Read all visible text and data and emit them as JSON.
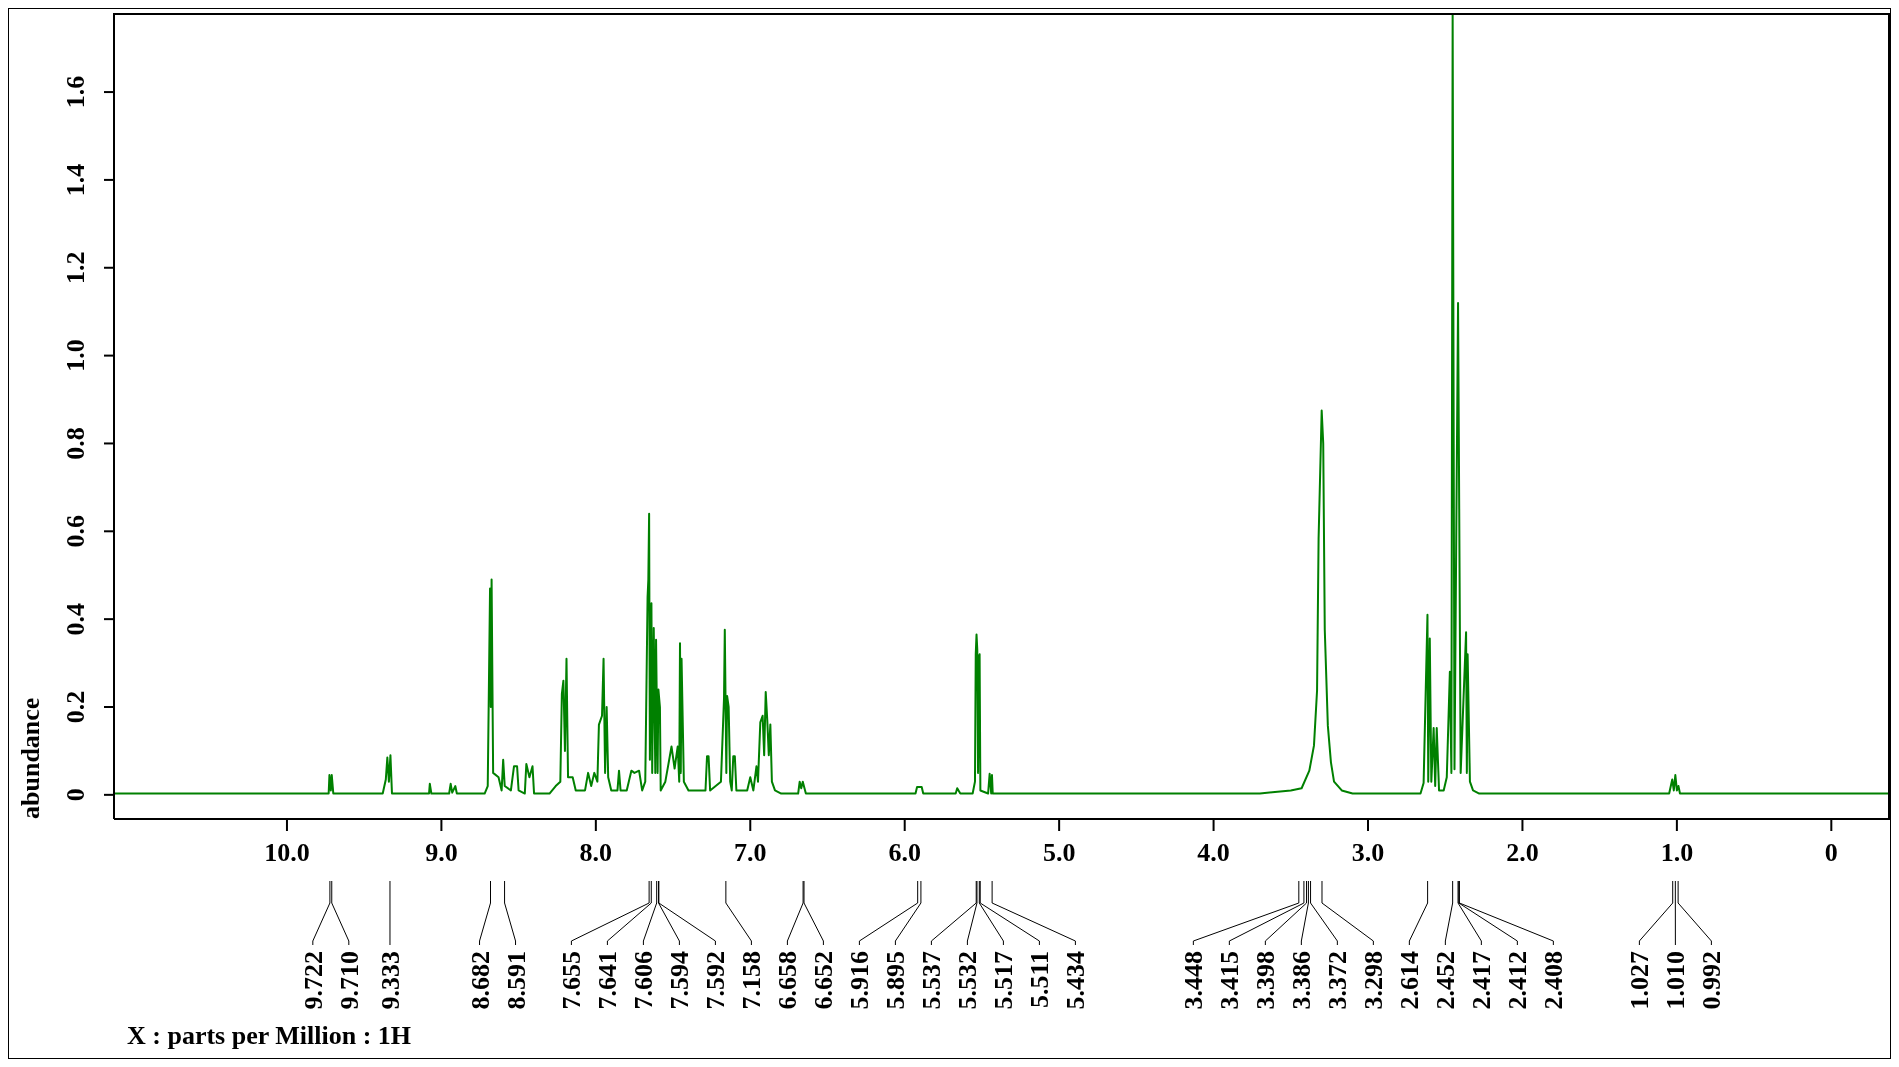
{
  "chart_data": {
    "type": "line",
    "ylabel": "abundance",
    "color": "#008000",
    "xlim": [
      11.12,
      -0.38
    ],
    "ylim": [
      -0.055,
      1.78
    ],
    "xticks": [
      {
        "value": 10,
        "label": "10.0"
      },
      {
        "value": 9,
        "label": "9.0"
      },
      {
        "value": 8,
        "label": "8.0"
      },
      {
        "value": 7,
        "label": "7.0"
      },
      {
        "value": 6,
        "label": "6.0"
      },
      {
        "value": 5,
        "label": "5.0"
      },
      {
        "value": 4,
        "label": "4.0"
      },
      {
        "value": 3,
        "label": "3.0"
      },
      {
        "value": 2,
        "label": "2.0"
      },
      {
        "value": 1,
        "label": "1.0"
      },
      0
    ],
    "yticks": [
      0,
      0.2,
      0.4,
      0.6,
      0.8,
      {
        "value": 1,
        "label": "1.0"
      },
      1.2,
      1.4,
      1.6
    ],
    "x": [
      11.12,
      9.76,
      9.73,
      9.725,
      9.716,
      9.71,
      9.7,
      9.38,
      9.36,
      9.35,
      9.34,
      9.33,
      9.32,
      9.08,
      9.075,
      9.065,
      8.95,
      8.94,
      8.93,
      8.91,
      8.9,
      8.72,
      8.7,
      8.685,
      8.68,
      8.675,
      8.665,
      8.63,
      8.61,
      8.6,
      8.59,
      8.55,
      8.53,
      8.51,
      8.5,
      8.46,
      8.45,
      8.43,
      8.41,
      8.4,
      8.3,
      8.26,
      8.23,
      8.22,
      8.21,
      8.2,
      8.19,
      8.18,
      8.15,
      8.13,
      8.07,
      8.05,
      8.03,
      8.01,
      7.99,
      7.98,
      7.96,
      7.95,
      7.94,
      7.93,
      7.92,
      7.9,
      7.86,
      7.85,
      7.84,
      7.8,
      7.77,
      7.75,
      7.72,
      7.7,
      7.68,
      7.665,
      7.66,
      7.655,
      7.65,
      7.64,
      7.635,
      7.625,
      7.615,
      7.61,
      7.6,
      7.595,
      7.585,
      7.58,
      7.55,
      7.53,
      7.51,
      7.49,
      7.47,
      7.46,
      7.455,
      7.45,
      7.445,
      7.43,
      7.4,
      7.29,
      7.28,
      7.27,
      7.26,
      7.19,
      7.17,
      7.165,
      7.155,
      7.15,
      7.14,
      7.13,
      7.12,
      7.11,
      7.1,
      7.09,
      7.02,
      7.0,
      6.98,
      6.96,
      6.95,
      6.935,
      6.92,
      6.91,
      6.9,
      6.89,
      6.88,
      6.87,
      6.86,
      6.84,
      6.8,
      6.69,
      6.68,
      6.67,
      6.66,
      6.64,
      5.93,
      5.92,
      5.89,
      5.88,
      5.67,
      5.66,
      5.64,
      5.56,
      5.545,
      5.54,
      5.535,
      5.53,
      5.525,
      5.52,
      5.515,
      5.51,
      5.46,
      5.45,
      5.44,
      5.435,
      5.43,
      3.7,
      3.62,
      3.5,
      3.43,
      3.38,
      3.35,
      3.33,
      3.32,
      3.3,
      3.29,
      3.28,
      3.26,
      3.24,
      3.22,
      3.17,
      3.1,
      2.66,
      2.64,
      2.615,
      2.61,
      2.6,
      2.59,
      2.575,
      2.565,
      2.555,
      2.54,
      2.51,
      2.49,
      2.47,
      2.46,
      2.452,
      2.44,
      2.417,
      2.412,
      2.4,
      2.365,
      2.36,
      2.355,
      2.34,
      2.32,
      2.28,
      1.05,
      1.03,
      1.02,
      1.01,
      1.0,
      0.99,
      0.98,
      -0.38
    ],
    "values": [
      0.003,
      0.003,
      0.003,
      0.045,
      0.01,
      0.045,
      0.003,
      0.003,
      0.035,
      0.085,
      0.03,
      0.09,
      0.003,
      0.003,
      0.025,
      0.003,
      0.003,
      0.025,
      0.005,
      0.02,
      0.003,
      0.003,
      0.02,
      0.47,
      0.2,
      0.49,
      0.05,
      0.04,
      0.01,
      0.08,
      0.02,
      0.01,
      0.065,
      0.065,
      0.01,
      0.003,
      0.07,
      0.04,
      0.065,
      0.003,
      0.003,
      0.02,
      0.03,
      0.23,
      0.26,
      0.1,
      0.31,
      0.04,
      0.04,
      0.01,
      0.01,
      0.05,
      0.02,
      0.05,
      0.03,
      0.16,
      0.18,
      0.31,
      0.05,
      0.2,
      0.04,
      0.01,
      0.01,
      0.055,
      0.01,
      0.01,
      0.055,
      0.05,
      0.055,
      0.01,
      0.03,
      0.45,
      0.49,
      0.64,
      0.08,
      0.436,
      0.05,
      0.38,
      0.05,
      0.353,
      0.05,
      0.24,
      0.2,
      0.01,
      0.03,
      0.07,
      0.11,
      0.06,
      0.11,
      0.03,
      0.345,
      0.05,
      0.31,
      0.03,
      0.01,
      0.01,
      0.088,
      0.088,
      0.01,
      0.03,
      0.22,
      0.376,
      0.05,
      0.225,
      0.2,
      0.03,
      0.01,
      0.088,
      0.088,
      0.01,
      0.01,
      0.04,
      0.01,
      0.065,
      0.03,
      0.165,
      0.18,
      0.09,
      0.234,
      0.17,
      0.09,
      0.16,
      0.03,
      0.01,
      0.003,
      0.003,
      0.03,
      0.015,
      0.03,
      0.003,
      0.003,
      0.018,
      0.018,
      0.003,
      0.003,
      0.015,
      0.003,
      0.003,
      0.03,
      0.32,
      0.365,
      0.33,
      0.05,
      0.315,
      0.32,
      0.01,
      0.003,
      0.048,
      0.003,
      0.045,
      0.003,
      0.003,
      0.006,
      0.01,
      0.015,
      0.055,
      0.112,
      0.237,
      0.583,
      0.875,
      0.8,
      0.376,
      0.157,
      0.074,
      0.03,
      0.01,
      0.003,
      0.003,
      0.027,
      0.41,
      0.03,
      0.356,
      0.03,
      0.152,
      0.02,
      0.152,
      0.01,
      0.01,
      0.04,
      0.28,
      0.05,
      1.78,
      0.058,
      1.12,
      0.815,
      0.05,
      0.37,
      0.05,
      0.32,
      0.03,
      0.01,
      0.003,
      0.003,
      0.035,
      0.01,
      0.045,
      0.01,
      0.02,
      0.003,
      0.003
    ],
    "annotations": [
      {
        "text": "9.722",
        "x": 9.722
      },
      {
        "text": "9.710",
        "x": 9.71
      },
      {
        "text": "9.333",
        "x": 9.333
      },
      {
        "text": "8.682",
        "x": 8.682
      },
      {
        "text": "8.591",
        "x": 8.591
      },
      {
        "text": "7.655",
        "x": 7.655
      },
      {
        "text": "7.641",
        "x": 7.641
      },
      {
        "text": "7.606",
        "x": 7.606
      },
      {
        "text": "7.594",
        "x": 7.594
      },
      {
        "text": "7.592",
        "x": 7.592
      },
      {
        "text": "7.158",
        "x": 7.158
      },
      {
        "text": "6.658",
        "x": 6.658
      },
      {
        "text": "6.652",
        "x": 6.652
      },
      {
        "text": "5.916",
        "x": 5.916
      },
      {
        "text": "5.895",
        "x": 5.895
      },
      {
        "text": "5.537",
        "x": 5.537
      },
      {
        "text": "5.532",
        "x": 5.532
      },
      {
        "text": "5.517",
        "x": 5.517
      },
      {
        "text": "5.511",
        "x": 5.511
      },
      {
        "text": "5.434",
        "x": 5.434
      },
      {
        "text": "3.448",
        "x": 3.448
      },
      {
        "text": "3.415",
        "x": 3.415
      },
      {
        "text": "3.398",
        "x": 3.398
      },
      {
        "text": "3.386",
        "x": 3.386
      },
      {
        "text": "3.372",
        "x": 3.372
      },
      {
        "text": "3.298",
        "x": 3.298
      },
      {
        "text": "2.614",
        "x": 2.614
      },
      {
        "text": "2.452",
        "x": 2.452
      },
      {
        "text": "2.417",
        "x": 2.417
      },
      {
        "text": "2.412",
        "x": 2.412
      },
      {
        "text": "2.408",
        "x": 2.408
      },
      {
        "text": "1.027",
        "x": 1.027
      },
      {
        "text": "1.010",
        "x": 1.01
      },
      {
        "text": "0.992",
        "x": 0.992
      },
      "X : parts per Million : 1H"
    ]
  }
}
